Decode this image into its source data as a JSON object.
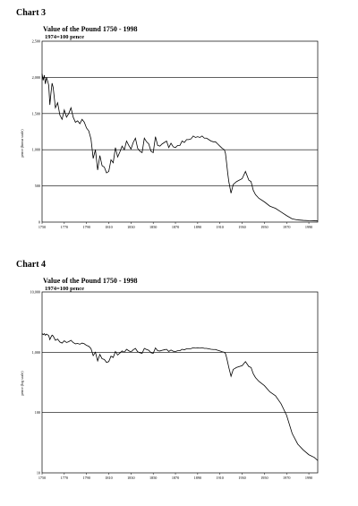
{
  "chart_data": [
    {
      "heading": "Chart 3",
      "title": "Value of the Pound 1750 - 1998",
      "subtitle": "1974=100 pence",
      "type": "line",
      "scale": "linear",
      "ylabel": "pence (linear scale)",
      "xlabel": "",
      "xlim": [
        1750,
        1998
      ],
      "ylim": [
        0,
        2500
      ],
      "grid": "horizontal",
      "legend": "none",
      "x_ticks": [
        "1750",
        "1770",
        "1790",
        "1810",
        "1830",
        "1850",
        "1870",
        "1890",
        "1910",
        "1930",
        "1950",
        "1970",
        "1990"
      ],
      "y_ticks": [
        "0",
        "500",
        "1,000",
        "1,500",
        "2,000",
        "2,500"
      ],
      "y_tick_values": [
        0,
        500,
        1000,
        1500,
        2000,
        2500
      ],
      "series": [
        {
          "x": [
            1750,
            1751,
            1752,
            1753,
            1754,
            1755,
            1756,
            1757,
            1758,
            1759,
            1760,
            1762,
            1764,
            1766,
            1768,
            1770,
            1772,
            1774,
            1776,
            1778,
            1780,
            1782,
            1784,
            1786,
            1788,
            1790,
            1792,
            1794,
            1796,
            1798,
            1800,
            1802,
            1804,
            1806,
            1808,
            1810,
            1812,
            1814,
            1816,
            1818,
            1820,
            1822,
            1824,
            1826,
            1828,
            1830,
            1832,
            1834,
            1836,
            1838,
            1840,
            1842,
            1844,
            1846,
            1848,
            1850,
            1852,
            1854,
            1856,
            1858,
            1860,
            1862,
            1864,
            1866,
            1868,
            1870,
            1872,
            1874,
            1876,
            1878,
            1880,
            1882,
            1884,
            1886,
            1888,
            1890,
            1892,
            1894,
            1896,
            1898,
            1900,
            1902,
            1904,
            1906,
            1908,
            1910,
            1912,
            1914,
            1915,
            1916,
            1917,
            1918,
            1920,
            1922,
            1925,
            1930,
            1933,
            1936,
            1938,
            1940,
            1942,
            1945,
            1950,
            1955,
            1960,
            1965,
            1970,
            1975,
            1980,
            1985,
            1990,
            1995,
            1998
          ],
          "y": [
            2050,
            1960,
            2030,
            1910,
            2000,
            1950,
            1890,
            1620,
            1780,
            1920,
            1860,
            1580,
            1650,
            1480,
            1420,
            1550,
            1450,
            1500,
            1580,
            1450,
            1380,
            1400,
            1360,
            1420,
            1380,
            1300,
            1260,
            1150,
            880,
            1000,
            720,
            920,
            780,
            760,
            680,
            700,
            860,
            820,
            1030,
            900,
            970,
            1050,
            1000,
            1120,
            1060,
            1010,
            1100,
            1160,
            1020,
            980,
            960,
            1160,
            1110,
            1080,
            980,
            960,
            1180,
            1060,
            1050,
            1080,
            1100,
            1120,
            1030,
            1090,
            1040,
            1030,
            1060,
            1060,
            1120,
            1100,
            1140,
            1140,
            1150,
            1190,
            1170,
            1180,
            1170,
            1190,
            1160,
            1160,
            1140,
            1120,
            1110,
            1110,
            1080,
            1050,
            1020,
            1000,
            950,
            820,
            680,
            560,
            400,
            520,
            560,
            600,
            700,
            580,
            560,
            440,
            380,
            330,
            280,
            220,
            190,
            140,
            90,
            45,
            30,
            24,
            20,
            18,
            16
          ]
        }
      ]
    },
    {
      "heading": "Chart 4",
      "title": "Value of the Pound 1750 - 1998",
      "subtitle": "1974=100 pence",
      "type": "line",
      "scale": "log",
      "ylabel": "pence (log scale)",
      "xlabel": "",
      "xlim": [
        1750,
        1998
      ],
      "ylim": [
        10,
        10000
      ],
      "grid": "horizontal",
      "legend": "none",
      "x_ticks": [
        "1750",
        "1770",
        "1790",
        "1810",
        "1830",
        "1850",
        "1870",
        "1890",
        "1910",
        "1930",
        "1950",
        "1970",
        "1990"
      ],
      "y_ticks": [
        "10",
        "100",
        "1,000",
        "10,000"
      ],
      "y_tick_values": [
        10,
        100,
        1000,
        10000
      ],
      "series": [
        {
          "x": [
            1750,
            1751,
            1752,
            1753,
            1754,
            1755,
            1756,
            1757,
            1758,
            1759,
            1760,
            1762,
            1764,
            1766,
            1768,
            1770,
            1772,
            1774,
            1776,
            1778,
            1780,
            1782,
            1784,
            1786,
            1788,
            1790,
            1792,
            1794,
            1796,
            1798,
            1800,
            1802,
            1804,
            1806,
            1808,
            1810,
            1812,
            1814,
            1816,
            1818,
            1820,
            1822,
            1824,
            1826,
            1828,
            1830,
            1832,
            1834,
            1836,
            1838,
            1840,
            1842,
            1844,
            1846,
            1848,
            1850,
            1852,
            1854,
            1856,
            1858,
            1860,
            1862,
            1864,
            1866,
            1868,
            1870,
            1872,
            1874,
            1876,
            1878,
            1880,
            1882,
            1884,
            1886,
            1888,
            1890,
            1892,
            1894,
            1896,
            1898,
            1900,
            1902,
            1904,
            1906,
            1908,
            1910,
            1912,
            1914,
            1915,
            1916,
            1917,
            1918,
            1920,
            1922,
            1925,
            1930,
            1933,
            1936,
            1938,
            1940,
            1942,
            1945,
            1950,
            1955,
            1960,
            1965,
            1970,
            1975,
            1980,
            1985,
            1990,
            1995,
            1998
          ],
          "y": [
            2050,
            1960,
            2030,
            1910,
            2000,
            1950,
            1890,
            1620,
            1780,
            1920,
            1860,
            1580,
            1650,
            1480,
            1420,
            1550,
            1450,
            1500,
            1580,
            1450,
            1380,
            1400,
            1360,
            1420,
            1380,
            1300,
            1260,
            1150,
            880,
            1000,
            720,
            920,
            780,
            760,
            680,
            700,
            860,
            820,
            1030,
            900,
            970,
            1050,
            1000,
            1120,
            1060,
            1010,
            1100,
            1160,
            1020,
            980,
            960,
            1160,
            1110,
            1080,
            980,
            960,
            1180,
            1060,
            1050,
            1080,
            1100,
            1120,
            1030,
            1090,
            1040,
            1030,
            1060,
            1060,
            1120,
            1100,
            1140,
            1140,
            1150,
            1190,
            1170,
            1180,
            1170,
            1190,
            1160,
            1160,
            1140,
            1120,
            1110,
            1110,
            1080,
            1050,
            1020,
            1000,
            950,
            820,
            680,
            560,
            400,
            520,
            560,
            600,
            700,
            580,
            560,
            440,
            380,
            330,
            280,
            220,
            190,
            140,
            90,
            45,
            30,
            24,
            20,
            18,
            16
          ]
        }
      ]
    }
  ]
}
